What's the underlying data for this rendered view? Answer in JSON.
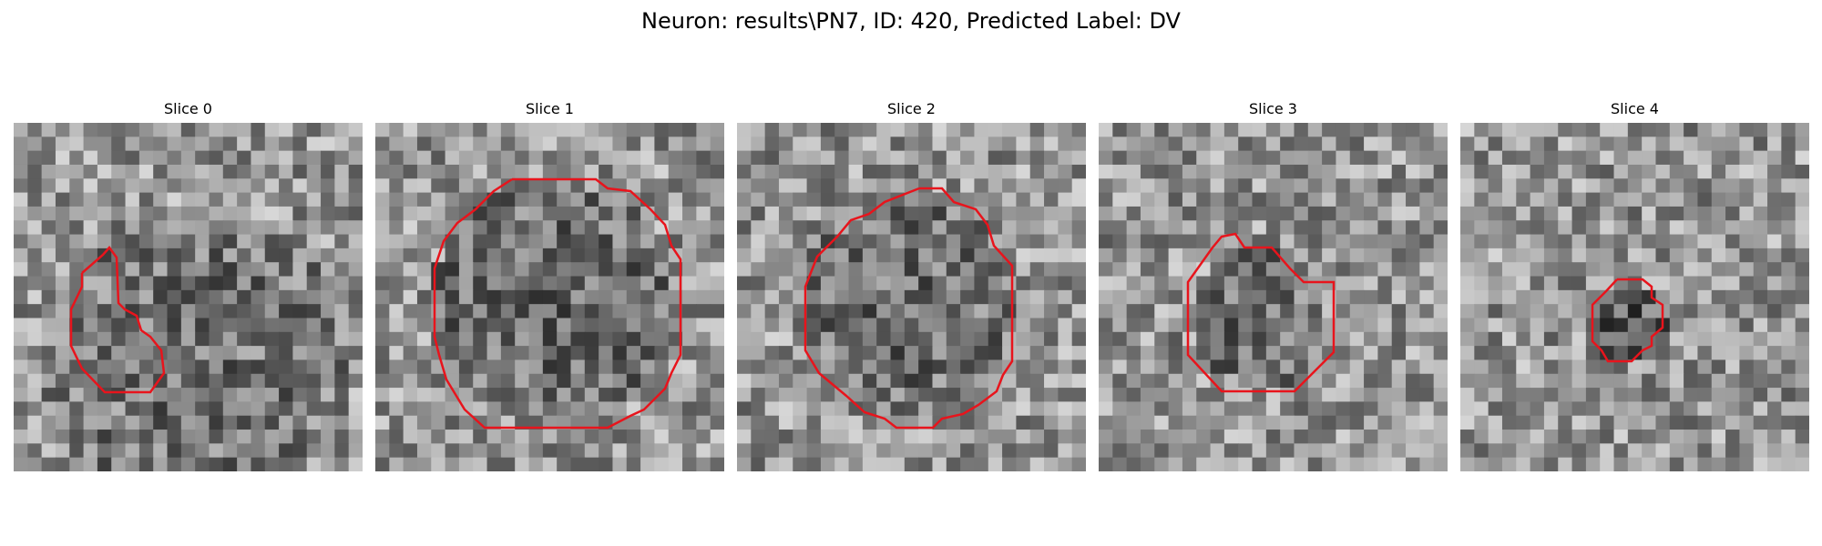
{
  "title": "Neuron: results\\PN7, ID: 420, Predicted Label: DV",
  "contour_color": "#e8141c",
  "slices": [
    {
      "label": "Slice 0"
    },
    {
      "label": "Slice 1"
    },
    {
      "label": "Slice 2"
    },
    {
      "label": "Slice 3"
    },
    {
      "label": "Slice 4"
    }
  ]
}
